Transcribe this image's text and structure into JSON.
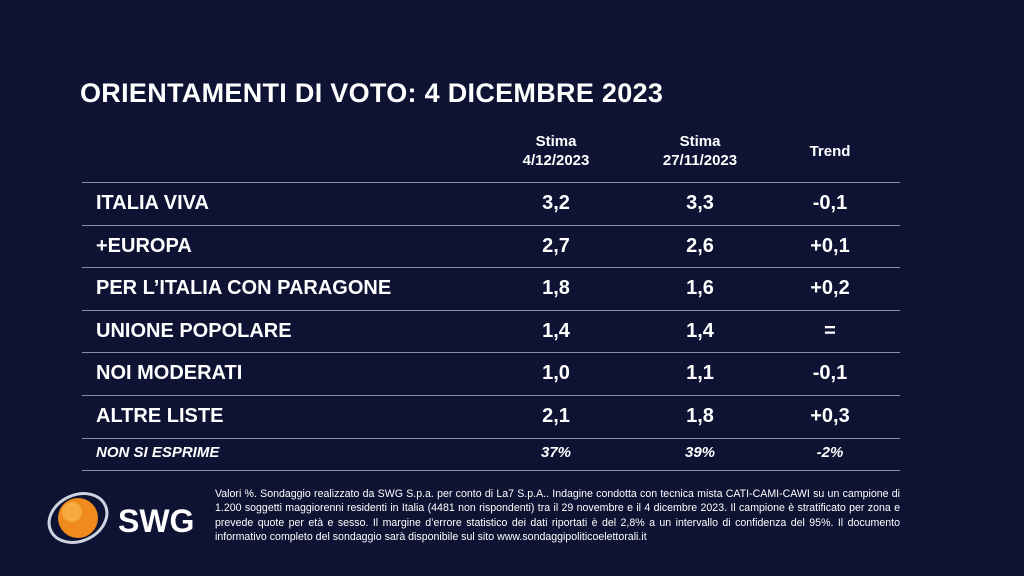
{
  "header": {
    "title": "ORIENTAMENTI DI VOTO: 4 DICEMBRE 2023"
  },
  "table": {
    "columns": [
      [
        "Stima",
        "4/12/2023"
      ],
      [
        "Stima",
        "27/11/2023"
      ],
      [
        "Trend"
      ]
    ],
    "rows": [
      [
        "ITALIA VIVA",
        "3,2",
        "3,3",
        "-0,1"
      ],
      [
        "+EUROPA",
        "2,7",
        "2,6",
        "+0,1"
      ],
      [
        "PER L’ITALIA CON PARAGONE",
        "1,8",
        "1,6",
        "+0,2"
      ],
      [
        "UNIONE POPOLARE",
        "1,4",
        "1,4",
        "="
      ],
      [
        "NOI MODERATI",
        "1,0",
        "1,1",
        "-0,1"
      ],
      [
        "ALTRE LISTE",
        "2,1",
        "1,8",
        "+0,3"
      ]
    ],
    "footer_row": [
      "NON SI ESPRIME",
      "37%",
      "39%",
      "-2%"
    ]
  },
  "logo": {
    "text": "SWG"
  },
  "note": "Valori %. Sondaggio realizzato da SWG S.p.a. per conto di La7 S.p.A.. Indagine condotta con tecnica mista CATI-CAMI-CAWI su un campione di 1.200 soggetti maggiorenni residenti in Italia (4481 non rispondenti) tra il 29 novembre e il 4 dicembre 2023. Il campione è stratificato per zona e prevede quote per età e sesso. Il margine d’errore statistico dei dati riportati è del 2,8% a un intervallo di confidenza del 95%. Il documento informativo completo del sondaggio sarà disponibile sul sito www.sondaggipoliticoelettorali.it"
}
